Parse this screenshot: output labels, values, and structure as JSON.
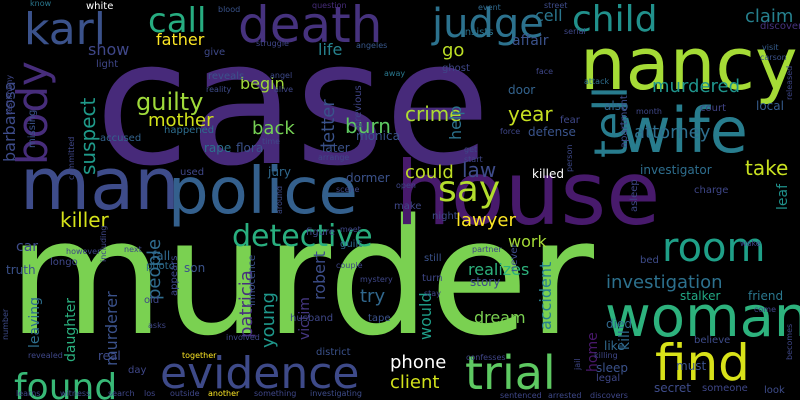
{
  "words": {
    "case": "case",
    "murder": "murder",
    "house": "house",
    "nancy": "nancy",
    "police": "police",
    "man": "man",
    "wife": "wife",
    "woman": "woman",
    "death": "death",
    "karl": "karl",
    "judge": "judge",
    "child": "child",
    "evidence": "evidence",
    "trial": "trial",
    "find": "find",
    "room": "room",
    "body": "body",
    "tell": "tell",
    "found": "found",
    "say": "say",
    "detective": "detective",
    "call": "call",
    "claim": "claim",
    "cell": "cell",
    "guilty": "guilty",
    "mother": "mother",
    "father": "father",
    "show": "show",
    "suspect": "suspect",
    "barbarosa": "barbarosa",
    "life": "life",
    "go": "go",
    "affair": "affair",
    "crime": "crime",
    "letter": "letter",
    "burn": "burn",
    "back": "back",
    "begin": "begin",
    "murdered": "murdered",
    "attorney": "attorney",
    "take": "take",
    "killer": "killer",
    "lawyer": "lawyer",
    "law": "law",
    "could": "could",
    "year": "year",
    "help": "help",
    "investigation": "investigation",
    "work": "work",
    "try": "try",
    "robert": "robert",
    "victim": "victim",
    "patricia": "patricia",
    "young": "young",
    "people": "people",
    "daughter": "daughter",
    "murderer": "murderer",
    "leaving": "leaving",
    "dream": "dream",
    "accident": "accident",
    "phone": "phone",
    "client": "client",
    "would": "would",
    "realizes": "realizes",
    "home": "home",
    "stalker": "stalker",
    "friend": "friend",
    "kill": "kill",
    "leaf": "leaf",
    "white": "white",
    "know": "know",
    "blood": "blood",
    "question": "question",
    "event": "event",
    "street": "street",
    "insists": "insists",
    "discover": "discover",
    "serial": "serial",
    "visit": "visit",
    "carson": "carson",
    "light": "light",
    "give": "give",
    "struggle": "struggle",
    "angeles": "angeles",
    "reveals": "reveals",
    "angel": "angel",
    "alive": "alive",
    "previous": "previous",
    "ghost": "ghost",
    "away": "away",
    "face": "face",
    "attack": "attack",
    "testimony": "testimony",
    "missing": "missing",
    "door": "door",
    "fear": "fear",
    "also": "also",
    "apartment": "apartment",
    "month": "month",
    "court": "court",
    "local": "local",
    "released": "released",
    "rape": "rape",
    "flora": "flora",
    "happened": "happened",
    "accused": "accused",
    "monica": "monica",
    "later": "later",
    "defense": "defense",
    "person": "person",
    "force": "force",
    "killed": "killed",
    "investigator": "investigator",
    "used": "used",
    "jury": "jury",
    "dormer": "dormer",
    "open": "open",
    "night": "night",
    "asleep": "asleep",
    "charge": "charge",
    "wake": "wake",
    "car": "car",
    "fall": "fall",
    "truth": "truth",
    "longo": "longo",
    "photo": "photo",
    "son": "son",
    "next": "next",
    "make": "make",
    "figure": "figure",
    "meet": "meet",
    "guilt": "guilt",
    "never": "never",
    "still": "still",
    "turn": "turn",
    "partner": "partner",
    "bed": "bed",
    "story": "story",
    "mystery": "mystery",
    "stay": "stay",
    "tape": "tape",
    "husband": "husband",
    "innocence": "innocence",
    "appears": "appears",
    "old": "old",
    "asks": "asks",
    "district": "district",
    "real": "real",
    "day": "day",
    "together": "together",
    "revealed": "revealed",
    "confesses": "confesses",
    "killing": "killing",
    "like": "like",
    "must": "must",
    "believe": "believe",
    "come": "come",
    "died": "died",
    "sleep": "sleep",
    "legal": "legal",
    "secret": "secret",
    "someone": "someone",
    "look": "look",
    "learns": "learns",
    "witness": "witness",
    "search": "search",
    "los": "los",
    "outside": "outside",
    "another": "another",
    "something": "something",
    "investigating": "investigating",
    "sentenced": "sentenced",
    "arrested": "arrested",
    "discovers": "discovers",
    "time": "time",
    "committed": "committed",
    "however": "however",
    "number": "number",
    "jail": "jail",
    "becomes": "becomes",
    "scene": "scene",
    "arrange": "arrange",
    "including": "including",
    "around": "around",
    "involved": "involved",
    "couple": "couple",
    "start": "start",
    "get": "get",
    "reality": "reality"
  }
}
